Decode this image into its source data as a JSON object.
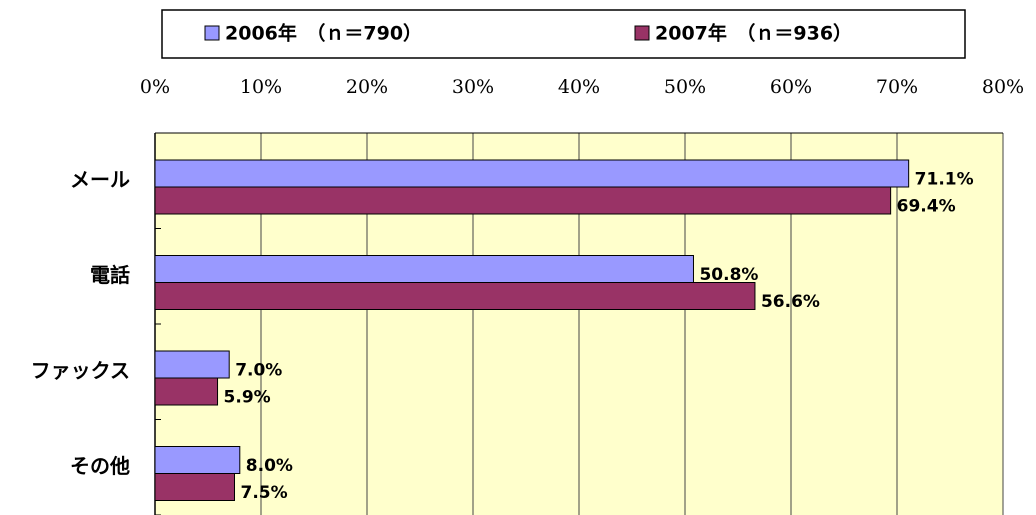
{
  "chart_data": {
    "type": "hbar",
    "categories": [
      "メール",
      "電話",
      "ファックス",
      "その他"
    ],
    "series": [
      {
        "name": "2006年　（ｎ＝790）",
        "color": "#9999ff",
        "values": [
          71.1,
          50.8,
          7.0,
          8.0
        ],
        "value_labels": [
          "71.1%",
          "50.8%",
          "7.0%",
          "8.0%"
        ]
      },
      {
        "name": "2007年　（ｎ＝936）",
        "color": "#993366",
        "values": [
          69.4,
          56.6,
          5.9,
          7.5
        ],
        "value_labels": [
          "69.4%",
          "56.6%",
          "5.9%",
          "7.5%"
        ]
      }
    ],
    "xlim": [
      0,
      80
    ],
    "xticks": [
      {
        "value": 0,
        "label": "0%"
      },
      {
        "value": 10,
        "label": "10%"
      },
      {
        "value": 20,
        "label": "20%"
      },
      {
        "value": 30,
        "label": "30%"
      },
      {
        "value": 40,
        "label": "40%"
      },
      {
        "value": 50,
        "label": "50%"
      },
      {
        "value": 60,
        "label": "60%"
      },
      {
        "value": 70,
        "label": "70%"
      },
      {
        "value": 80,
        "label": "80%"
      }
    ],
    "grid": true,
    "legend": "top"
  }
}
